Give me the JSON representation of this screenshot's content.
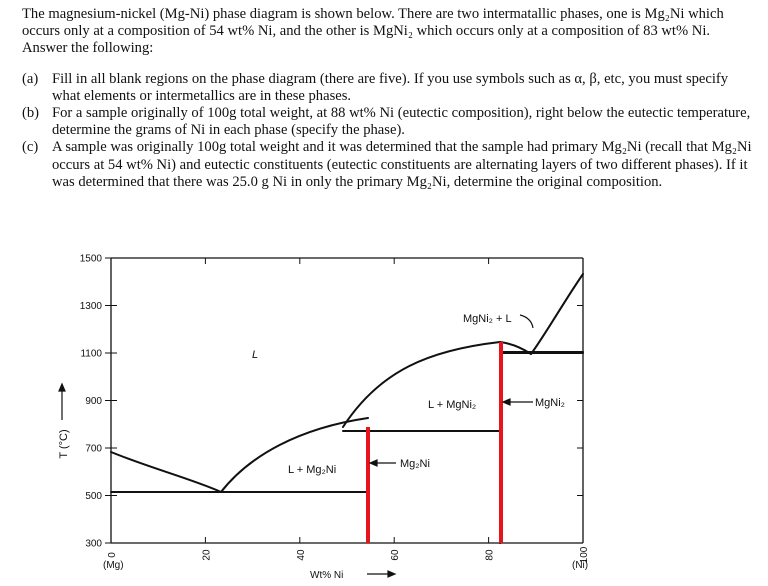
{
  "question": {
    "intro": "The magnesium-nickel (Mg-Ni) phase diagram is shown below. There are two intermatallic phases, one is Mg₂Ni which occurs only at a composition of 54 wt% Ni, and the other is MgNi₂ which occurs only at a composition of 83 wt% Ni. Answer the following:",
    "items": [
      {
        "label": "(a)",
        "text": "Fill in all blank regions on the phase diagram (there are five). If you use symbols such as α, β, etc, you must specify what elements or intermetallics are in these phases."
      },
      {
        "label": "(b)",
        "text": "For a sample originally of 100g total weight, at 88 wt% Ni (eutectic composition), right below the eutectic temperature, determine the grams of Ni in each phase (specify the phase)."
      },
      {
        "label": "(c)",
        "text": "A sample was originally 100g total weight and it was determined that the sample had primary Mg₂Ni (recall that Mg₂Ni occurs at 54 wt% Ni) and eutectic constituents (eutectic constituents are alternating layers of two different phases). If it was determined that there was 25.0 g Ni in only the primary Mg₂Ni, determine the original composition."
      }
    ]
  },
  "diagram": {
    "y_axis_label": "T (°C)",
    "x_axis_label": "Wt% Ni",
    "x_left_end_label": "(Mg)",
    "x_right_end_label": "(Ni)",
    "x_ticks": [
      "0",
      "20",
      "40",
      "60",
      "80",
      "100"
    ],
    "y_ticks": [
      "1500",
      "1300",
      "1100",
      "900",
      "700",
      "500",
      "300"
    ],
    "labels": {
      "liquid": "L",
      "l_mg2ni": "L + Mg₂Ni",
      "l_mgni2": "L + MgNi₂",
      "mgni2_l": "MgNi₂ + L",
      "mg2ni": "Mg₂Ni",
      "mgni2": "MgNi₂"
    },
    "colors": {
      "line": "#111111",
      "intermetallic": "#e8141b"
    }
  }
}
